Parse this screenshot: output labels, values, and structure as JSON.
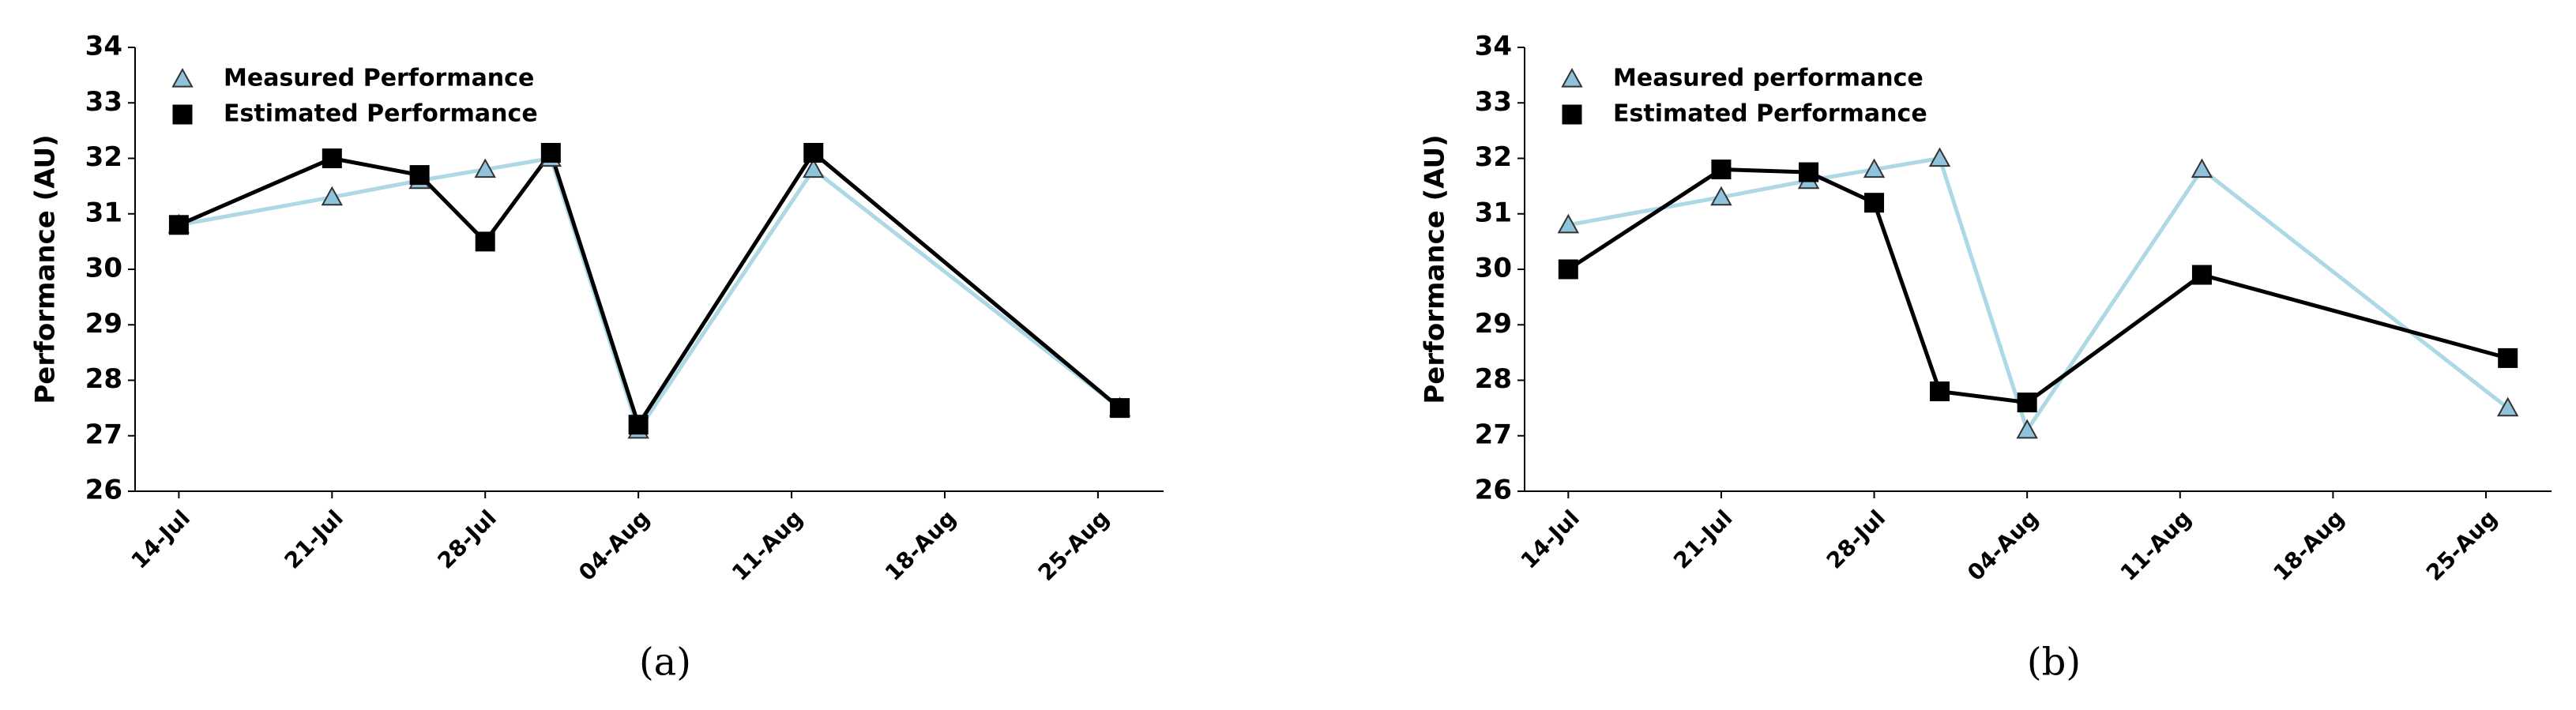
{
  "chart_data": [
    {
      "type": "line",
      "caption": "(a)",
      "ylabel": "Performance (AU)",
      "legend": "upper left",
      "x": [
        "07-14",
        "07-21",
        "07-25",
        "07-28",
        "07-31",
        "08-04",
        "08-12",
        "08-26"
      ],
      "xlim": [
        "07-12",
        "08-28"
      ],
      "xticks": [
        {
          "value": "07-14",
          "label": "14-Jul"
        },
        {
          "value": "07-21",
          "label": "21-Jul"
        },
        {
          "value": "07-28",
          "label": "28-Jul"
        },
        {
          "value": "08-04",
          "label": "04-Aug"
        },
        {
          "value": "08-11",
          "label": "11-Aug"
        },
        {
          "value": "08-18",
          "label": "18-Aug"
        },
        {
          "value": "08-25",
          "label": "25-Aug"
        }
      ],
      "ylim": [
        26,
        34
      ],
      "yticks": [
        26,
        27,
        28,
        29,
        30,
        31,
        32,
        33,
        34
      ],
      "series": [
        {
          "name": "Measured Performance",
          "color": "#add8e6",
          "marker": "triangle",
          "marker_color": "#8fc3dc",
          "values": [
            30.8,
            31.3,
            31.6,
            31.8,
            32.0,
            27.1,
            31.8,
            27.5
          ]
        },
        {
          "name": "Estimated Performance",
          "color": "#000000",
          "marker": "square",
          "marker_color": "#000000",
          "values": [
            30.8,
            32.0,
            31.7,
            30.5,
            32.1,
            27.2,
            32.1,
            27.5
          ]
        }
      ]
    },
    {
      "type": "line",
      "caption": "(b)",
      "ylabel": "Performance (AU)",
      "legend": "upper left",
      "x": [
        "07-14",
        "07-21",
        "07-25",
        "07-28",
        "07-31",
        "08-04",
        "08-12",
        "08-26"
      ],
      "xlim": [
        "07-12",
        "08-28"
      ],
      "xticks": [
        {
          "value": "07-14",
          "label": "14-Jul"
        },
        {
          "value": "07-21",
          "label": "21-Jul"
        },
        {
          "value": "07-28",
          "label": "28-Jul"
        },
        {
          "value": "08-04",
          "label": "04-Aug"
        },
        {
          "value": "08-11",
          "label": "11-Aug"
        },
        {
          "value": "08-18",
          "label": "18-Aug"
        },
        {
          "value": "08-25",
          "label": "25-Aug"
        }
      ],
      "ylim": [
        26,
        34
      ],
      "yticks": [
        26,
        27,
        28,
        29,
        30,
        31,
        32,
        33,
        34
      ],
      "series": [
        {
          "name": "Measured performance",
          "color": "#add8e6",
          "marker": "triangle",
          "marker_color": "#8fc3dc",
          "values": [
            30.8,
            31.3,
            31.6,
            31.8,
            32.0,
            27.1,
            31.8,
            27.5
          ]
        },
        {
          "name": "Estimated Performance",
          "color": "#000000",
          "marker": "square",
          "marker_color": "#000000",
          "values": [
            30.0,
            31.8,
            31.75,
            31.2,
            27.8,
            27.6,
            29.9,
            28.4
          ]
        }
      ]
    }
  ]
}
